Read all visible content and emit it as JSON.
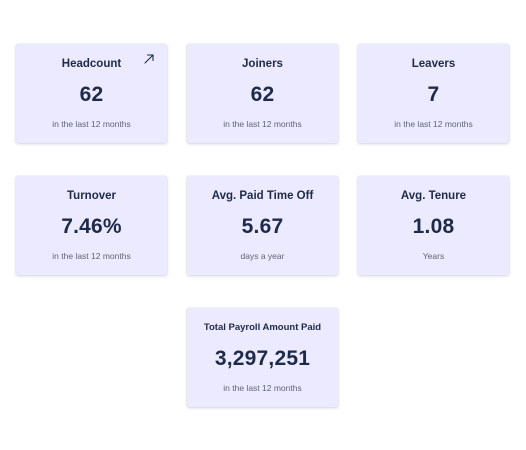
{
  "cards": [
    {
      "title": "Headcount",
      "value": "62",
      "subtitle": "in the last 12 months",
      "icon": "expand-arrow-icon"
    },
    {
      "title": "Joiners",
      "value": "62",
      "subtitle": "in the last 12 months"
    },
    {
      "title": "Leavers",
      "value": "7",
      "subtitle": "in the last 12 months"
    },
    {
      "title": "Turnover",
      "value": "7.46%",
      "subtitle": "in the last 12 months"
    },
    {
      "title": "Avg. Paid Time Off",
      "value": "5.67",
      "subtitle": "days a year"
    },
    {
      "title": "Avg. Tenure",
      "value": "1.08",
      "subtitle": "Years"
    },
    {
      "title": "Total Payroll Amount Paid",
      "value": "3,297,251",
      "subtitle": "in the last 12 months"
    }
  ],
  "colors": {
    "card_background": "#ebeafe",
    "text_primary": "#1e2a4a",
    "text_secondary": "#5f6577"
  }
}
